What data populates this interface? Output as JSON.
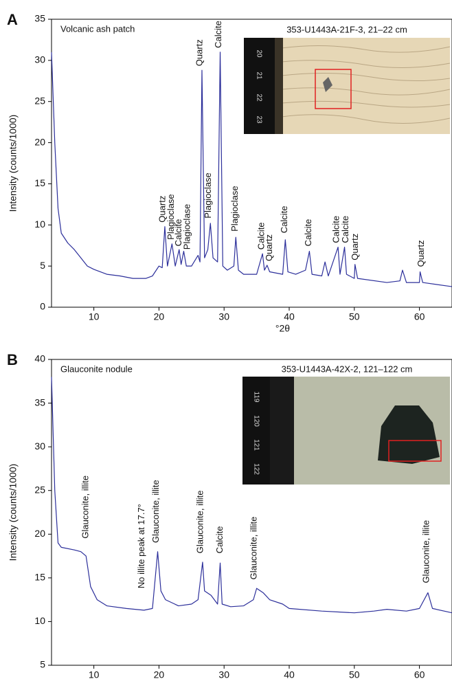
{
  "chart_data": [
    {
      "type": "line",
      "panel": "A",
      "label": "Volcanic ash patch",
      "inset_caption": "353-U1443A-21F-3, 21–22 cm",
      "ruler_labels": [
        "20",
        "21",
        "22",
        "23"
      ],
      "xlabel": "°2θ",
      "ylabel": "Intensity (counts/1000)",
      "color": "#2b2e9a",
      "xlim": [
        3.5,
        65
      ],
      "ylim": [
        0,
        35
      ],
      "xticks": [
        10,
        20,
        30,
        40,
        50,
        60
      ],
      "yticks": [
        0,
        5,
        10,
        15,
        20,
        25,
        30,
        35
      ],
      "x": [
        3.5,
        4,
        4.5,
        5,
        6,
        7,
        8,
        9,
        10,
        12,
        14,
        16,
        18,
        19,
        20,
        20.5,
        20.9,
        21.3,
        22,
        22.5,
        23.1,
        23.4,
        23.8,
        24.2,
        25,
        26,
        26.3,
        26.6,
        27,
        27.5,
        27.9,
        28.3,
        29,
        29.4,
        29.8,
        30.5,
        31.5,
        31.8,
        32.2,
        33,
        35,
        35.9,
        36.2,
        36.6,
        37,
        39,
        39.4,
        39.8,
        41,
        42.5,
        43.1,
        43.5,
        45,
        45.5,
        46,
        47.5,
        47.8,
        48.5,
        48.8,
        50,
        50.1,
        50.5,
        55,
        57,
        57.4,
        58,
        60,
        60.1,
        60.5,
        65
      ],
      "values": [
        31,
        20,
        12,
        9,
        7.8,
        7,
        6,
        5,
        4.6,
        4,
        3.8,
        3.5,
        3.5,
        3.8,
        5,
        4.8,
        9.8,
        5,
        7.7,
        5,
        7,
        5.2,
        6.8,
        5,
        5,
        6.3,
        5.5,
        28.8,
        6,
        7,
        10.2,
        6,
        5.5,
        31,
        5,
        4.5,
        5,
        8.5,
        4.5,
        4,
        4,
        6.5,
        4.5,
        5.1,
        4.3,
        4,
        8.2,
        4.3,
        4,
        4.5,
        6.8,
        4,
        3.8,
        5.5,
        3.8,
        7.3,
        4,
        7.3,
        4,
        3.5,
        5.2,
        3.5,
        3,
        3.2,
        4.5,
        3,
        3,
        4.3,
        3,
        2.5
      ],
      "annotations": [
        {
          "text": "Quartz",
          "x": 20.6,
          "y": 10.3
        },
        {
          "text": "Plagioclase",
          "x": 21.9,
          "y": 8.2
        },
        {
          "text": "Calcite",
          "x": 23.1,
          "y": 7.4
        },
        {
          "text": "Plagioclase",
          "x": 24.4,
          "y": 7
        },
        {
          "text": "Quartz",
          "x": 26.3,
          "y": 29.3
        },
        {
          "text": "Plagioclase",
          "x": 27.6,
          "y": 10.8
        },
        {
          "text": "Calcite",
          "x": 29.2,
          "y": 31.5
        },
        {
          "text": "Plagioclase",
          "x": 31.7,
          "y": 9.2
        },
        {
          "text": "Calcite",
          "x": 35.8,
          "y": 7
        },
        {
          "text": "Quartz",
          "x": 37,
          "y": 5.6
        },
        {
          "text": "Calcite",
          "x": 39.3,
          "y": 9
        },
        {
          "text": "Calcite",
          "x": 43,
          "y": 7.4
        },
        {
          "text": "Calcite",
          "x": 47.3,
          "y": 7.8
        },
        {
          "text": "Calcite",
          "x": 48.7,
          "y": 7.8
        },
        {
          "text": "Quartz",
          "x": 50.2,
          "y": 5.7
        },
        {
          "text": "Quartz",
          "x": 60.3,
          "y": 4.9
        }
      ]
    },
    {
      "type": "line",
      "panel": "B",
      "label": "Glauconite nodule",
      "inset_caption": "353-U1443A-42X-2, 121–122 cm",
      "ruler_labels": [
        "119",
        "120",
        "121",
        "122"
      ],
      "xlabel": "°2θ",
      "ylabel": "Intensity (counts/1000)",
      "color": "#2b2e9a",
      "xlim": [
        3.5,
        65
      ],
      "ylim": [
        5,
        40
      ],
      "xticks": [
        10,
        20,
        30,
        40,
        50,
        60
      ],
      "yticks": [
        5,
        10,
        15,
        20,
        25,
        30,
        35,
        40
      ],
      "x": [
        3.5,
        4,
        4.5,
        5,
        7,
        8,
        8.8,
        9.5,
        10.5,
        12,
        15,
        17.7,
        19,
        19.8,
        20.3,
        21,
        23,
        25,
        26,
        26.7,
        27,
        28,
        29,
        29.4,
        29.7,
        31,
        33,
        34.5,
        35,
        36,
        37,
        39,
        40,
        45,
        50,
        53,
        55,
        58,
        60,
        61.3,
        62,
        65
      ],
      "values": [
        38,
        25,
        19,
        18.5,
        18.2,
        18,
        17.5,
        14,
        12.5,
        11.8,
        11.5,
        11.3,
        11.5,
        18,
        13.5,
        12.5,
        11.8,
        12,
        12.5,
        16.8,
        13.5,
        13,
        12,
        16.7,
        12,
        11.7,
        11.8,
        12.5,
        13.8,
        13.3,
        12.5,
        12,
        11.5,
        11.2,
        11,
        11.2,
        11.4,
        11.2,
        11.5,
        13.3,
        11.5,
        11
      ],
      "annotations": [
        {
          "text": "Glauconite, illite",
          "x": 8.8,
          "y": 19.5
        },
        {
          "text": "No illite peak at 17.7°",
          "x": 17.4,
          "y": 13.8
        },
        {
          "text": "Glauconite, illite",
          "x": 19.6,
          "y": 19
        },
        {
          "text": "Glauconite, illite",
          "x": 26.4,
          "y": 17.8
        },
        {
          "text": "Calcite",
          "x": 29.4,
          "y": 17.8
        },
        {
          "text": "Glauconite, illite",
          "x": 34.6,
          "y": 14.8
        },
        {
          "text": "Glauconite, illite",
          "x": 61.1,
          "y": 14.4
        }
      ]
    }
  ]
}
